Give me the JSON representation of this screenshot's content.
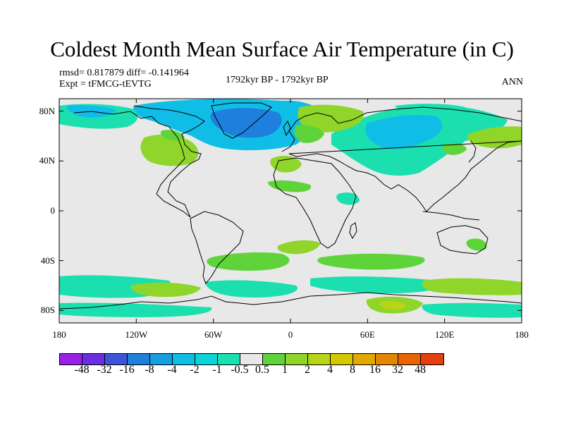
{
  "title": "Coldest Month Mean Surface Air Temperature (in C)",
  "stats": "rmsd= 0.817879  diff= -0.141964",
  "experiment": "Expt = tFMCG-tEVTG",
  "period": "1792kyr BP - 1792kyr BP",
  "season": "ANN",
  "map": {
    "projection": "cylindrical-equidistant",
    "lon_range": [
      -180,
      180
    ],
    "lat_range": [
      -90,
      90
    ],
    "x_ticks": [
      {
        "value": -180,
        "label": "180"
      },
      {
        "value": -120,
        "label": "120W"
      },
      {
        "value": -60,
        "label": "60W"
      },
      {
        "value": 0,
        "label": "0"
      },
      {
        "value": 60,
        "label": "60E"
      },
      {
        "value": 120,
        "label": "120E"
      },
      {
        "value": 180,
        "label": "180"
      }
    ],
    "y_ticks": [
      {
        "value": 80,
        "label": "80N"
      },
      {
        "value": 40,
        "label": "40N"
      },
      {
        "value": 0,
        "label": "0"
      },
      {
        "value": -40,
        "label": "40S"
      },
      {
        "value": -80,
        "label": "80S"
      }
    ],
    "background_color": "#e8e8e8",
    "coastline_color": "#000000"
  },
  "colorbar": {
    "colors": [
      "#9a20e8",
      "#6a2ee0",
      "#3b56dc",
      "#1e7fdc",
      "#159ee0",
      "#10bde6",
      "#0dd4d9",
      "#1cdfb0",
      "#e8e8e8",
      "#5ed43a",
      "#8fd52a",
      "#b8d414",
      "#d6c800",
      "#e0a800",
      "#e58600",
      "#e86400",
      "#e53e10"
    ],
    "labels": [
      "-48",
      "-32",
      "-16",
      "-8",
      "-4",
      "-2",
      "-1",
      "-0.5",
      "0.5",
      "1",
      "2",
      "4",
      "8",
      "16",
      "32",
      "48"
    ]
  }
}
